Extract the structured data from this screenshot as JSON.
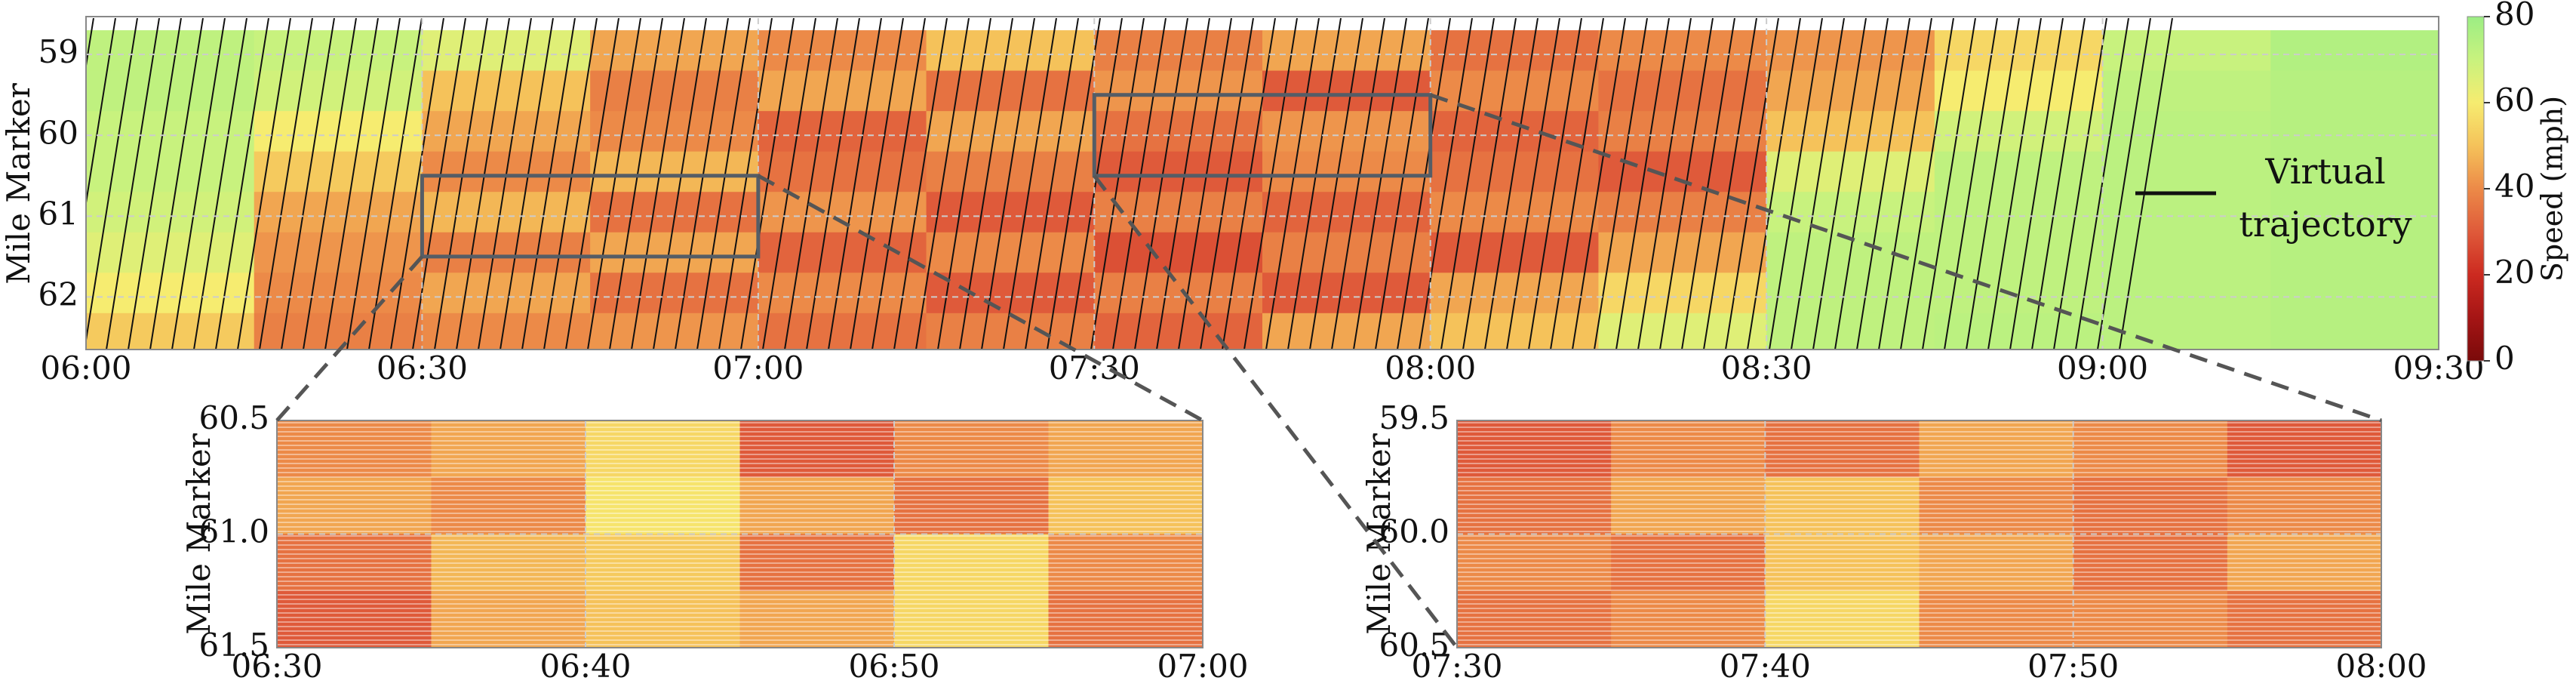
{
  "chart_data": [
    {
      "type": "heatmap",
      "ylabel": "Mile Marker",
      "xlim": [
        0,
        210
      ],
      "xticks": [
        {
          "value": 0,
          "label": "06:00"
        },
        {
          "value": 30,
          "label": "06:30"
        },
        {
          "value": 60,
          "label": "07:00"
        },
        {
          "value": 90,
          "label": "07:30"
        },
        {
          "value": 120,
          "label": "08:00"
        },
        {
          "value": 150,
          "label": "08:30"
        },
        {
          "value": 180,
          "label": "09:00"
        },
        {
          "value": 210,
          "label": "09:30"
        }
      ],
      "ylim": [
        58.55,
        62.65
      ],
      "y_inverted": true,
      "yticks": [
        59,
        60,
        61,
        62
      ],
      "grid": true,
      "xbins": [
        0,
        15,
        30,
        45,
        60,
        75,
        90,
        105,
        120,
        135,
        150,
        165,
        180,
        195,
        210
      ],
      "ybins": [
        58.7,
        59.2,
        59.7,
        60.2,
        60.7,
        61.2,
        61.7,
        62.2,
        62.65
      ],
      "z": [
        [
          72,
          70,
          65,
          45,
          40,
          50,
          38,
          45,
          35,
          40,
          42,
          55,
          70,
          75
        ],
        [
          72,
          68,
          50,
          38,
          45,
          35,
          42,
          30,
          40,
          35,
          45,
          60,
          72,
          74
        ],
        [
          70,
          60,
          45,
          40,
          32,
          45,
          35,
          42,
          32,
          38,
          50,
          68,
          73,
          74
        ],
        [
          70,
          52,
          40,
          48,
          35,
          38,
          30,
          40,
          35,
          30,
          65,
          72,
          73,
          74
        ],
        [
          68,
          45,
          48,
          35,
          42,
          30,
          38,
          32,
          40,
          38,
          70,
          72,
          73,
          74
        ],
        [
          65,
          42,
          38,
          45,
          32,
          40,
          28,
          38,
          30,
          45,
          72,
          72,
          73,
          74
        ],
        [
          60,
          40,
          45,
          35,
          40,
          30,
          38,
          30,
          45,
          55,
          72,
          72,
          73,
          74
        ],
        [
          52,
          38,
          40,
          42,
          35,
          38,
          32,
          45,
          50,
          65,
          72,
          73,
          73,
          74
        ]
      ],
      "trajectory_label": [
        "Virtual",
        "trajectory"
      ],
      "trajectory_color": "#111111",
      "colorbar": {
        "label": "Speed (mph)",
        "lim": [
          0,
          80
        ],
        "ticks": [
          0,
          20,
          40,
          60,
          80
        ],
        "colormap": [
          "#7a0a0a",
          "#a51515",
          "#cc2a20",
          "#df5a3a",
          "#ec8a48",
          "#f5c25a",
          "#f6ec70",
          "#c8f27e",
          "#9cee84"
        ]
      }
    },
    {
      "type": "heatmap",
      "ylabel": "Mile Marker",
      "xlim": [
        30,
        60
      ],
      "xticks": [
        {
          "value": 30,
          "label": "06:30"
        },
        {
          "value": 40,
          "label": "06:40"
        },
        {
          "value": 50,
          "label": "06:50"
        },
        {
          "value": 60,
          "label": "07:00"
        }
      ],
      "ylim": [
        60.5,
        61.5
      ],
      "y_inverted": true,
      "yticks": [
        60.5,
        {
          "value": 61,
          "label": "61.0"
        },
        61.5
      ],
      "grid": true,
      "xbins": [
        30,
        35,
        40,
        45,
        50,
        55,
        60
      ],
      "ybins": [
        60.5,
        60.75,
        61,
        61.25,
        61.5
      ],
      "z": [
        [
          40,
          45,
          55,
          30,
          40,
          45
        ],
        [
          45,
          40,
          58,
          45,
          35,
          50
        ],
        [
          35,
          48,
          52,
          35,
          55,
          40
        ],
        [
          30,
          45,
          50,
          45,
          55,
          35
        ]
      ]
    },
    {
      "type": "heatmap",
      "ylabel": "Mile Marker",
      "xlim": [
        90,
        120
      ],
      "xticks": [
        {
          "value": 90,
          "label": "07:30"
        },
        {
          "value": 100,
          "label": "07:40"
        },
        {
          "value": 110,
          "label": "07:50"
        },
        {
          "value": 120,
          "label": "08:00"
        }
      ],
      "ylim": [
        59.5,
        60.5
      ],
      "y_inverted": true,
      "yticks": [
        59.5,
        {
          "value": 60,
          "label": "60.0"
        },
        60.5
      ],
      "grid": true,
      "xbins": [
        90,
        95,
        100,
        105,
        110,
        115,
        120
      ],
      "ybins": [
        59.5,
        59.75,
        60,
        60.25,
        60.5
      ],
      "z": [
        [
          30,
          40,
          35,
          45,
          40,
          30
        ],
        [
          35,
          45,
          50,
          40,
          35,
          40
        ],
        [
          40,
          35,
          50,
          45,
          35,
          45
        ],
        [
          35,
          40,
          55,
          40,
          40,
          35
        ]
      ]
    }
  ]
}
